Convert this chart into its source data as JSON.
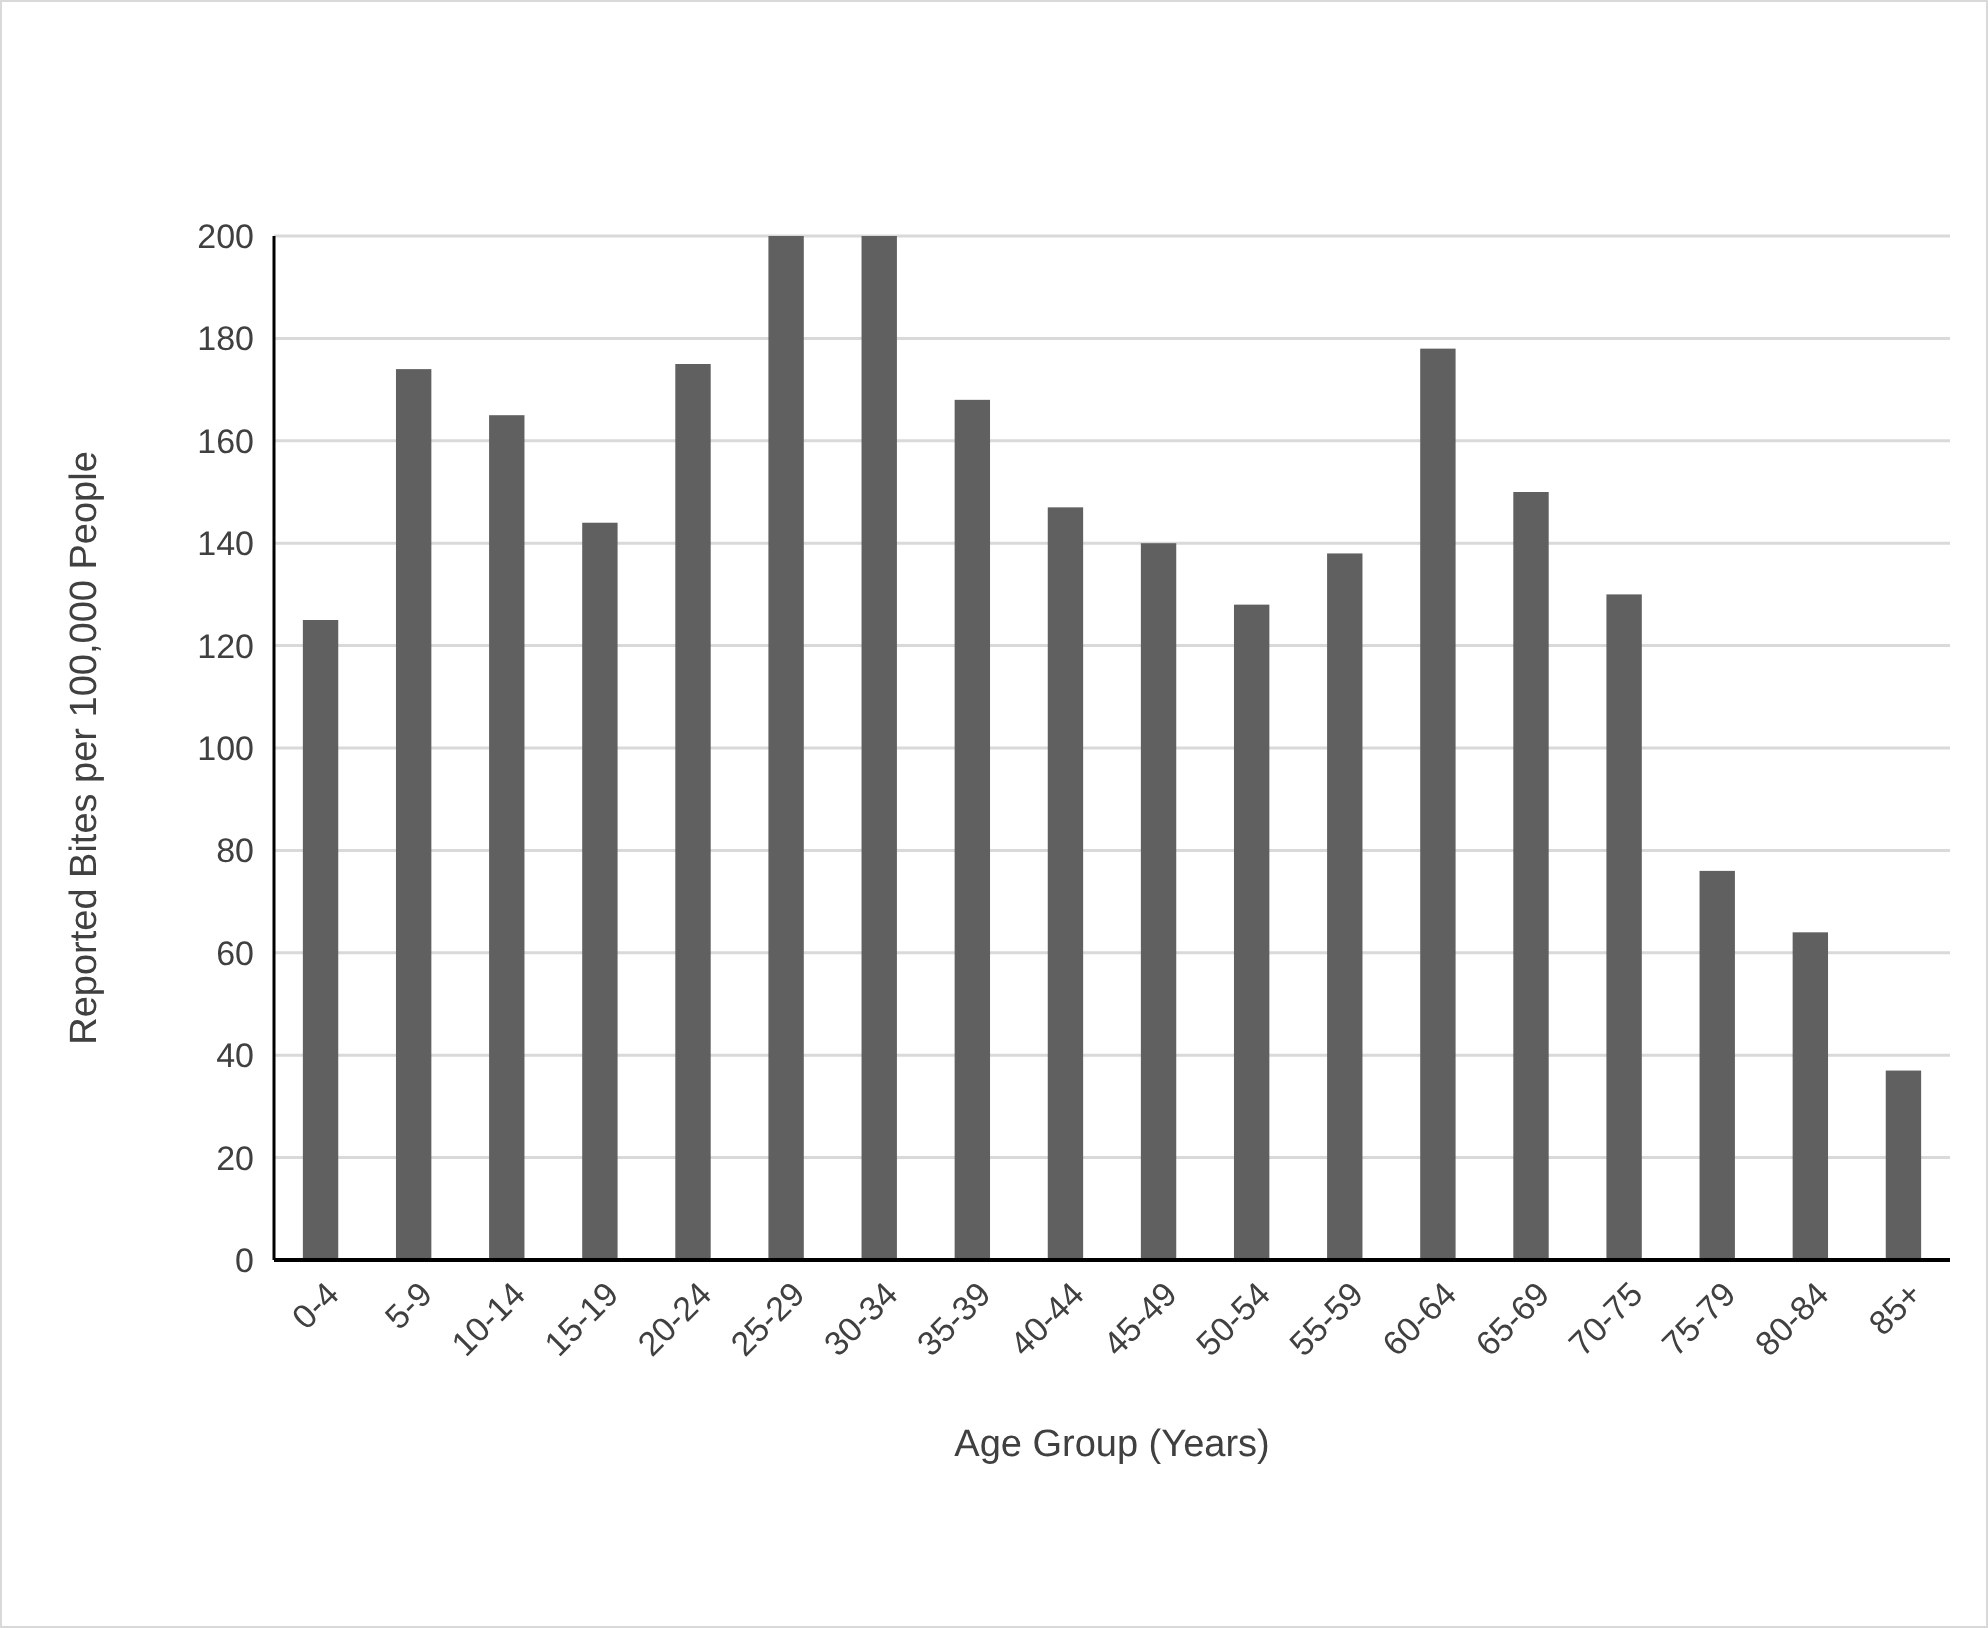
{
  "chart_data": {
    "type": "bar",
    "xlabel": "Age Group (Years)",
    "ylabel": "Reported Bites per 100,000 People",
    "categories": [
      "0-4",
      "5-9",
      "10-14",
      "15-19",
      "20-24",
      "25-29",
      "30-34",
      "35-39",
      "40-44",
      "45-49",
      "50-54",
      "55-59",
      "60-64",
      "65-69",
      "70-75",
      "75-79",
      "80-84",
      "85+"
    ],
    "values": [
      125,
      174,
      165,
      144,
      175,
      200,
      200,
      168,
      147,
      140,
      128,
      138,
      178,
      150,
      130,
      76,
      64,
      37
    ],
    "color": "#606060",
    "ylim": [
      0,
      200
    ],
    "yticks": [
      0,
      20,
      40,
      60,
      80,
      100,
      120,
      140,
      160,
      180,
      200
    ],
    "grid": "y"
  }
}
